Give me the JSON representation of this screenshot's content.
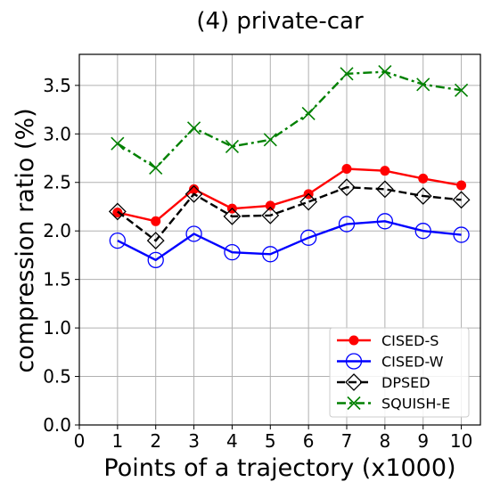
{
  "chart_data": {
    "type": "line",
    "title": "(4) private-car",
    "xlabel": "Points of a trajectory (x1000)",
    "ylabel": "compression ratio (%)",
    "xlim": [
      0,
      10.5
    ],
    "ylim": [
      0,
      3.82
    ],
    "x_ticks": [
      "0",
      "1",
      "2",
      "3",
      "4",
      "5",
      "6",
      "7",
      "8",
      "9",
      "10"
    ],
    "y_ticks": [
      "0.0",
      "0.5",
      "1.0",
      "1.5",
      "2.0",
      "2.5",
      "3.0",
      "3.5"
    ],
    "grid": true,
    "legend_position": "bottom-right",
    "x": [
      1,
      2,
      3,
      4,
      5,
      6,
      7,
      8,
      9,
      10
    ],
    "series": [
      {
        "name": "CISED-S",
        "color": "#ff0000",
        "marker": "filled-circle",
        "line": "solid",
        "values": [
          2.19,
          2.1,
          2.43,
          2.23,
          2.26,
          2.38,
          2.64,
          2.62,
          2.54,
          2.47
        ]
      },
      {
        "name": "CISED-W",
        "color": "#0000ff",
        "marker": "open-circle",
        "line": "solid",
        "values": [
          1.9,
          1.7,
          1.97,
          1.78,
          1.76,
          1.93,
          2.07,
          2.1,
          2.0,
          1.96
        ]
      },
      {
        "name": "DPSED",
        "color": "#000000",
        "marker": "open-diamond",
        "line": "dashed",
        "values": [
          2.2,
          1.9,
          2.38,
          2.15,
          2.16,
          2.3,
          2.45,
          2.43,
          2.36,
          2.32
        ]
      },
      {
        "name": "SQUISH-E",
        "color": "#008000",
        "marker": "x",
        "line": "dash-dot",
        "values": [
          2.9,
          2.65,
          3.06,
          2.87,
          2.94,
          3.21,
          3.62,
          3.64,
          3.51,
          3.45
        ]
      }
    ]
  }
}
